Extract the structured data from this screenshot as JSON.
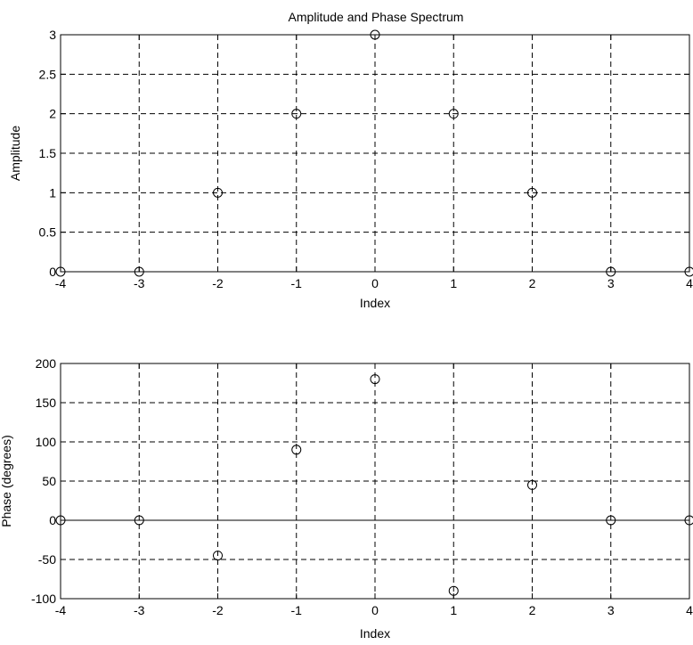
{
  "chart_data": [
    {
      "type": "scatter",
      "title": "Amplitude and Phase Spectrum",
      "xlabel": "Index",
      "ylabel": "Amplitude",
      "xlim": [
        -4,
        4
      ],
      "ylim": [
        0,
        3
      ],
      "xticks": [
        -4,
        -3,
        -2,
        -1,
        0,
        1,
        2,
        3,
        4
      ],
      "yticks": [
        0,
        0.5,
        1,
        1.5,
        2,
        2.5,
        3
      ],
      "grid": true,
      "marker": "circle",
      "series": [
        {
          "x": [
            -4,
            -3,
            -2,
            -1,
            0,
            1,
            2,
            3,
            4
          ],
          "y": [
            0,
            0,
            1,
            2,
            3,
            2,
            1,
            0,
            0
          ]
        }
      ]
    },
    {
      "type": "scatter",
      "title": "",
      "xlabel": "Index",
      "ylabel": "Phase (degrees)",
      "xlim": [
        -4,
        4
      ],
      "ylim": [
        -100,
        200
      ],
      "xticks": [
        -4,
        -3,
        -2,
        -1,
        0,
        1,
        2,
        3,
        4
      ],
      "yticks": [
        -100,
        -50,
        0,
        50,
        100,
        150,
        200
      ],
      "grid": true,
      "zero_line": true,
      "marker": "circle",
      "series": [
        {
          "x": [
            -4,
            -3,
            -2,
            -1,
            0,
            1,
            2,
            3,
            4
          ],
          "y": [
            0,
            0,
            -45,
            90,
            180,
            -90,
            45,
            0,
            0
          ]
        }
      ]
    }
  ]
}
